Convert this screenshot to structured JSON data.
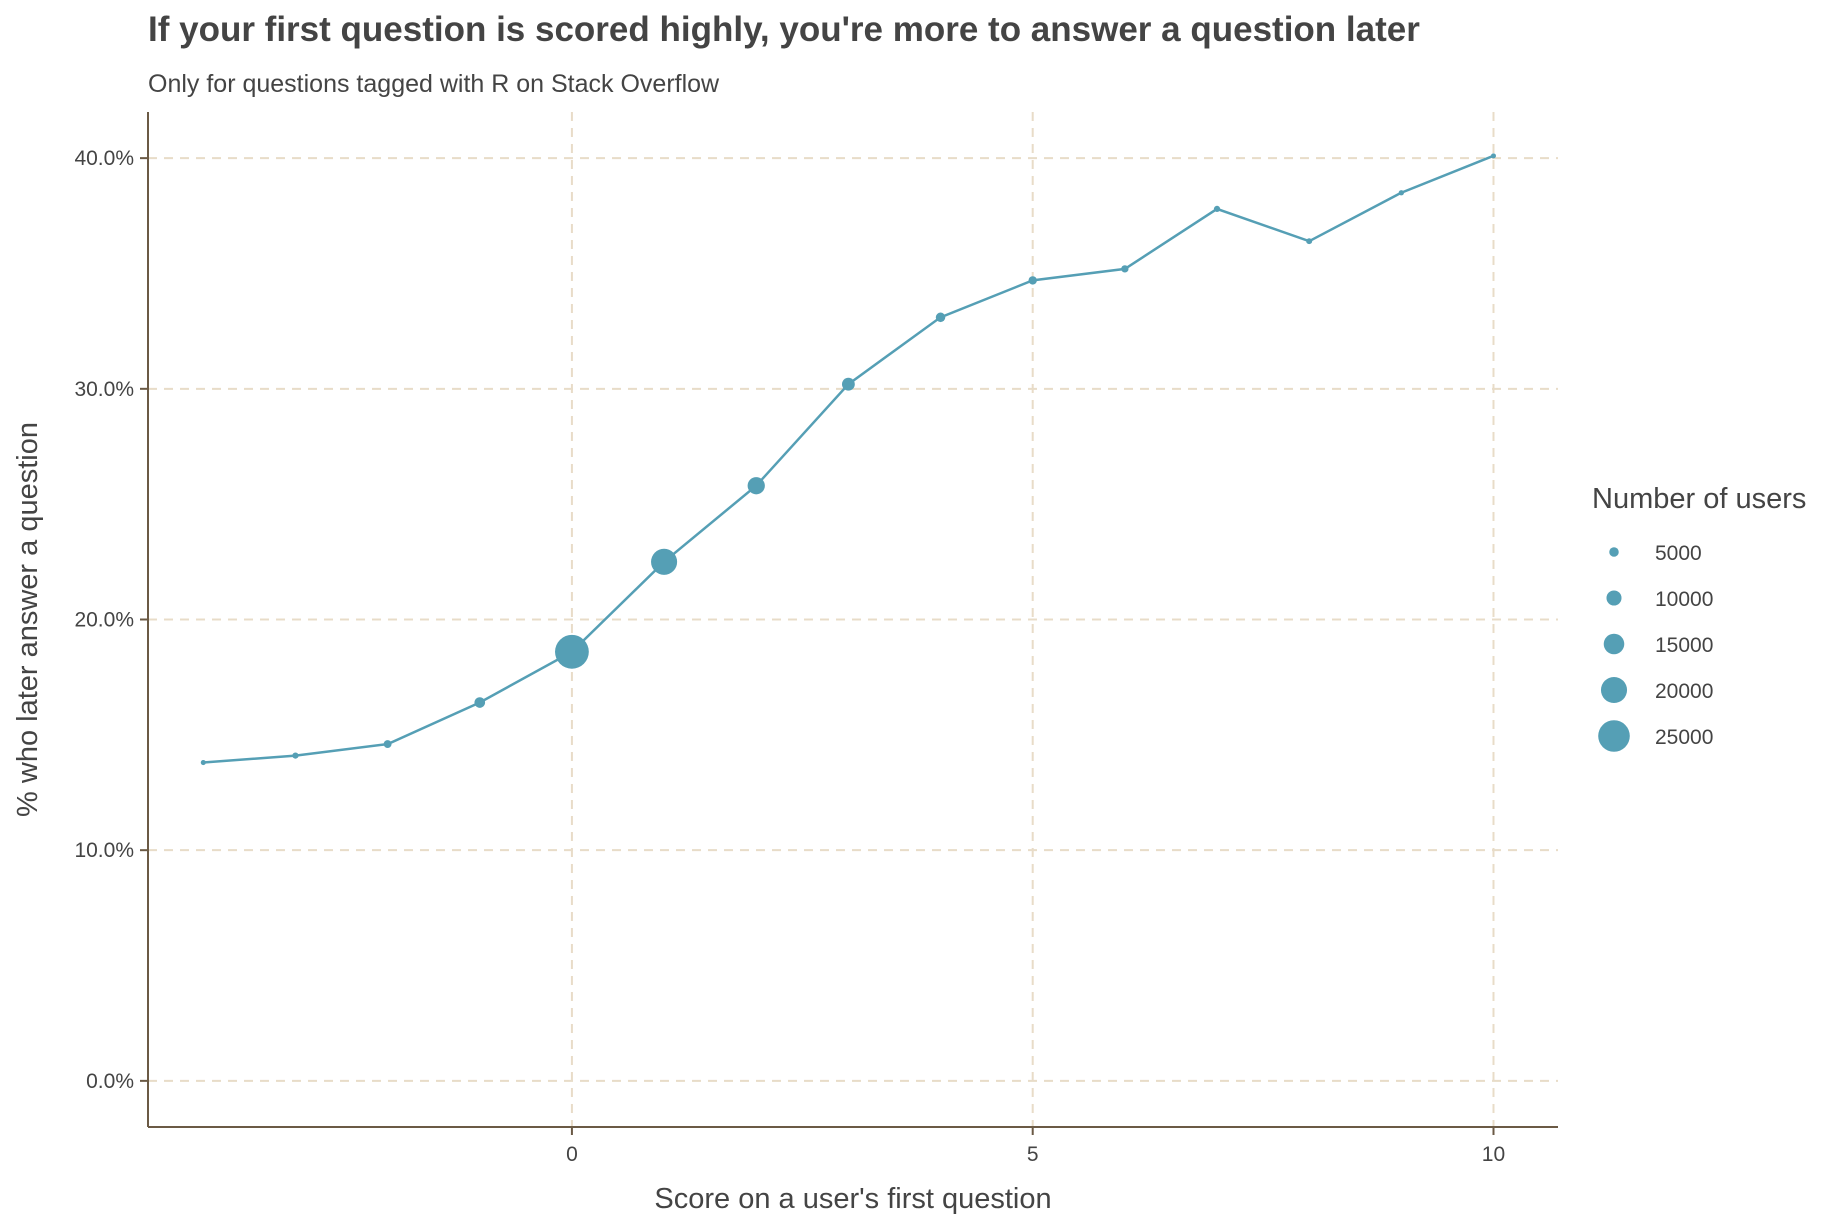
{
  "chart_data": {
    "type": "scatter",
    "title": "If your first question is scored highly, you're more to answer a question later",
    "subtitle": "Only for questions tagged with R on Stack Overflow",
    "xlabel": "Score on a user's first question",
    "ylabel": "% who later answer a question",
    "x_ticks": [
      0,
      5,
      10
    ],
    "y_ticks": [
      0,
      0.1,
      0.2,
      0.3,
      0.4
    ],
    "y_tick_labels": [
      "0.0%",
      "10.0%",
      "20.0%",
      "30.0%",
      "40.0%"
    ],
    "xlim": [
      -4.6,
      10.7
    ],
    "ylim": [
      -0.02,
      0.42
    ],
    "grid": true,
    "connected_line": true,
    "series": [
      {
        "x": [
          -4,
          -3,
          -2,
          -1,
          0,
          1,
          2,
          3,
          4,
          5,
          6,
          7,
          8,
          9,
          10
        ],
        "y": [
          0.138,
          0.141,
          0.146,
          0.164,
          0.186,
          0.225,
          0.258,
          0.302,
          0.331,
          0.347,
          0.352,
          0.378,
          0.364,
          0.385,
          0.401
        ],
        "users": [
          1000,
          2000,
          3500,
          6000,
          27000,
          20000,
          12000,
          8000,
          5000,
          4000,
          3000,
          2000,
          1800,
          1200,
          900
        ]
      }
    ],
    "legend": {
      "title": "Number of users",
      "placement": "right",
      "entries": [
        5000,
        10000,
        15000,
        20000,
        25000
      ]
    },
    "colors": {
      "point": "#559fb5",
      "line": "#559fb5",
      "grid": "#e8dcc8",
      "axis": "#6b5a45",
      "text": "#444444"
    }
  }
}
